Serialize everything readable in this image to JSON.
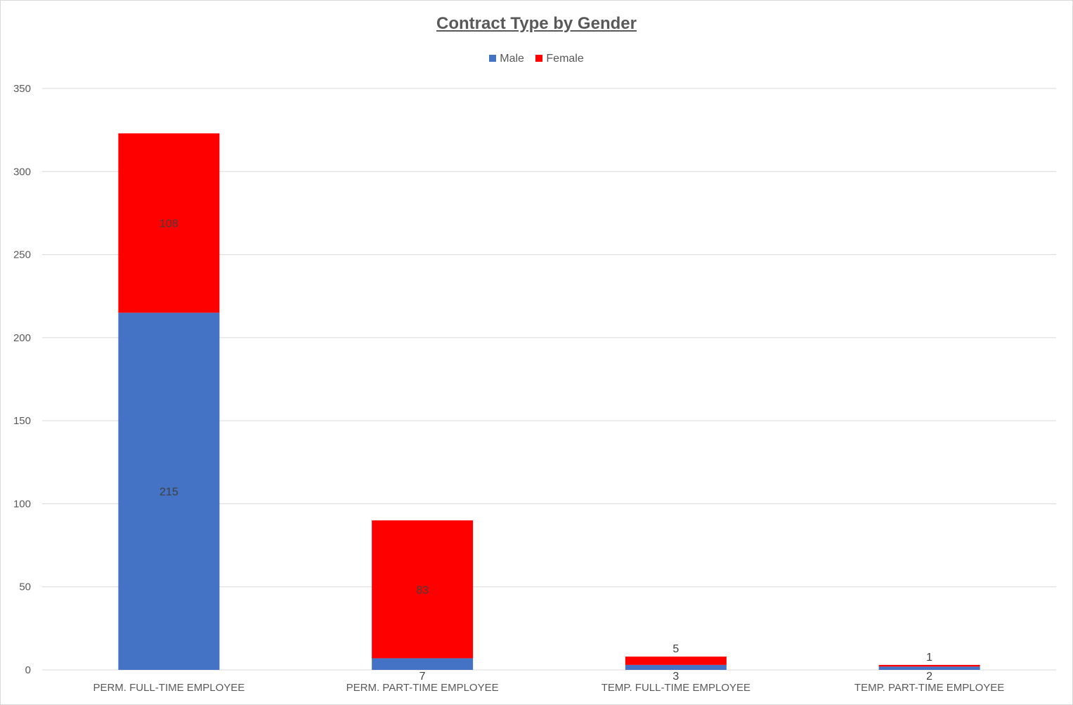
{
  "chart_data": {
    "type": "bar",
    "stacked": true,
    "title": "Contract Type by Gender",
    "categories": [
      "PERM. FULL-TIME EMPLOYEE",
      "PERM. PART-TIME EMPLOYEE",
      "TEMP. FULL-TIME EMPLOYEE",
      "TEMP. PART-TIME EMPLOYEE"
    ],
    "series": [
      {
        "name": "Male",
        "values": [
          215,
          7,
          3,
          2
        ],
        "color": "#4472c4"
      },
      {
        "name": "Female",
        "values": [
          108,
          83,
          5,
          1
        ],
        "color": "#ff0000"
      }
    ],
    "ylim": [
      0,
      350
    ],
    "yticks": [
      "0",
      "50",
      "100",
      "150",
      "200",
      "250",
      "300",
      "350"
    ],
    "grid": true,
    "legend_position": "top"
  }
}
